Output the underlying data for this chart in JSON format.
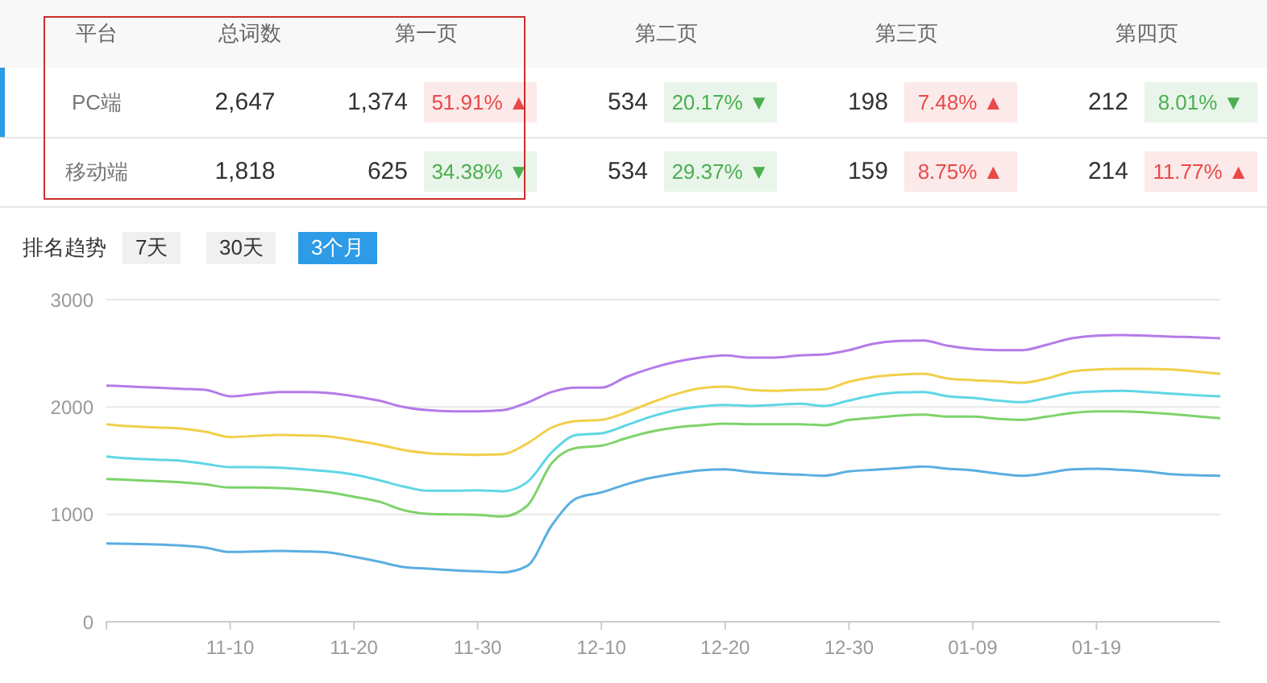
{
  "chart_data": [
    {
      "type": "other",
      "ylabel": "平台",
      "categories": [
        "总词数",
        "第一页",
        null,
        "第二页",
        null,
        "第三页",
        null,
        "第四页",
        null
      ],
      "y_categories": [
        "PC端",
        "移动端"
      ],
      "cell_labels": [
        [
          "2,647",
          "1,374",
          "51.91% ▲",
          "534",
          "20.17% ▼",
          "198",
          "7.48% ▲",
          "212",
          "8.01% ▼"
        ],
        [
          "1,818",
          "625",
          "34.38% ▼",
          "534",
          "29.37% ▼",
          "159",
          "8.75% ▲",
          "214",
          "11.77% ▲"
        ]
      ],
      "colors": [
        [
          null,
          null,
          "#e84a4a",
          null,
          "#4caf50",
          null,
          "#e84a4a",
          null,
          "#4caf50"
        ],
        [
          null,
          null,
          "#4caf50",
          null,
          "#4caf50",
          null,
          "#e84a4a",
          null,
          "#e84a4a"
        ]
      ]
    },
    {
      "type": "line",
      "title": "排名趋势",
      "annotations": [
        "7天",
        "30天",
        "3个月"
      ],
      "categories": [
        null,
        null,
        null,
        null,
        null,
        "11-10",
        null,
        null,
        null,
        null,
        "11-20",
        null,
        null,
        null,
        null,
        "11-30",
        null,
        null,
        null,
        null,
        "12-10",
        null,
        null,
        null,
        null,
        "12-20",
        null,
        null,
        null,
        null,
        "12-30",
        null,
        null,
        null,
        null,
        "01-09",
        null,
        null,
        null,
        null,
        "01-19",
        null,
        null,
        null,
        null,
        null
      ],
      "series": [
        {
          "color": "#b57be8",
          "values": [
            2200,
            2190,
            2180,
            2170,
            2160,
            2100,
            2120,
            2140,
            2140,
            2130,
            2100,
            2060,
            2000,
            1970,
            1960,
            1960,
            1970,
            2040,
            2140,
            2180,
            2180,
            2280,
            2360,
            2420,
            2460,
            2480,
            2460,
            2460,
            2480,
            2490,
            2530,
            2590,
            2615,
            2620,
            2570,
            2540,
            2530,
            2530,
            2580,
            2640,
            2665,
            2670,
            2665,
            2655,
            2650,
            2640
          ]
        },
        {
          "color": "#f2cf4a",
          "values": [
            1840,
            1820,
            1810,
            1800,
            1770,
            1720,
            1730,
            1740,
            1735,
            1725,
            1690,
            1650,
            1600,
            1570,
            1560,
            1555,
            1560,
            1660,
            1810,
            1870,
            1880,
            1950,
            2040,
            2120,
            2175,
            2190,
            2160,
            2150,
            2160,
            2165,
            2235,
            2280,
            2300,
            2310,
            2265,
            2250,
            2240,
            2225,
            2265,
            2330,
            2350,
            2355,
            2355,
            2350,
            2330,
            2310
          ]
        },
        {
          "color": "#5fd6e6",
          "values": [
            1540,
            1520,
            1510,
            1500,
            1470,
            1440,
            1440,
            1435,
            1420,
            1400,
            1370,
            1320,
            1260,
            1220,
            1220,
            1225,
            1215,
            1300,
            1580,
            1740,
            1755,
            1830,
            1910,
            1970,
            2005,
            2020,
            2010,
            2020,
            2030,
            2010,
            2060,
            2110,
            2135,
            2140,
            2100,
            2085,
            2060,
            2045,
            2085,
            2130,
            2145,
            2150,
            2140,
            2125,
            2110,
            2100
          ]
        },
        {
          "color": "#7ed36b",
          "values": [
            1330,
            1320,
            1310,
            1300,
            1280,
            1250,
            1250,
            1245,
            1230,
            1205,
            1165,
            1120,
            1040,
            1005,
            1000,
            995,
            980,
            1080,
            1480,
            1620,
            1640,
            1710,
            1770,
            1810,
            1830,
            1845,
            1840,
            1840,
            1840,
            1830,
            1880,
            1900,
            1920,
            1930,
            1910,
            1910,
            1890,
            1880,
            1910,
            1945,
            1960,
            1960,
            1950,
            1935,
            1915,
            1895
          ]
        },
        {
          "color": "#5aaee0",
          "values": [
            730,
            725,
            720,
            710,
            690,
            650,
            655,
            660,
            655,
            645,
            605,
            560,
            510,
            495,
            480,
            470,
            460,
            520,
            900,
            1150,
            1205,
            1280,
            1340,
            1380,
            1410,
            1420,
            1395,
            1380,
            1370,
            1360,
            1400,
            1415,
            1430,
            1445,
            1425,
            1410,
            1380,
            1360,
            1385,
            1420,
            1425,
            1415,
            1400,
            1375,
            1365,
            1360
          ]
        }
      ],
      "ylim": [
        0,
        3000
      ],
      "yticks": [
        0,
        1000,
        2000,
        3000
      ],
      "grid": "y",
      "legend": false
    }
  ]
}
